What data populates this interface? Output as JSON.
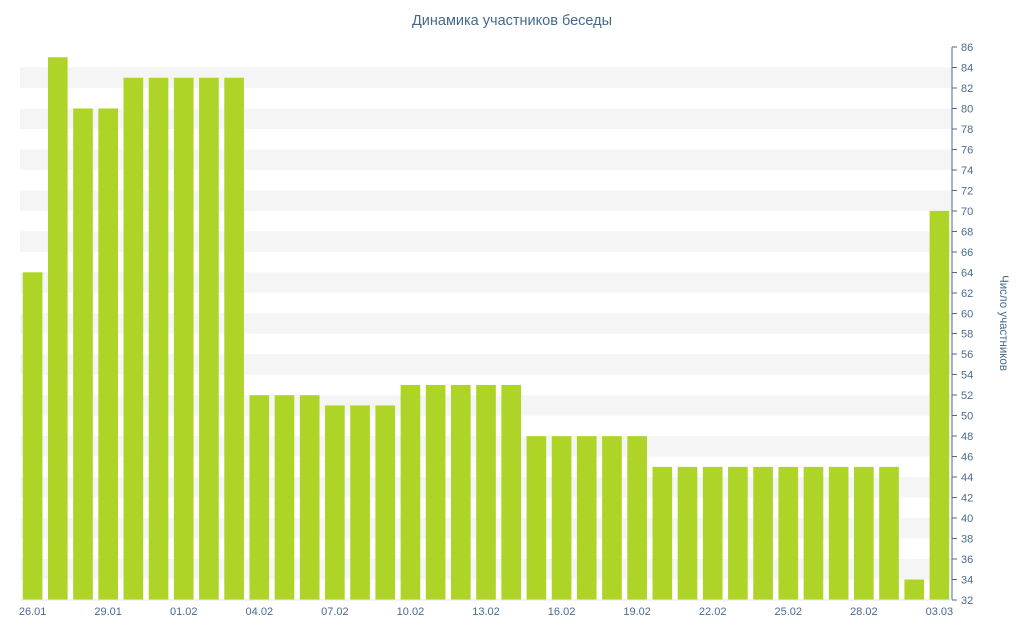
{
  "colors": {
    "bar": "#aed428",
    "text": "#4a6b8f",
    "title": "#45688e",
    "axis": "#4a6b8f",
    "stripe": "#f5f5f5",
    "baseline": "#e8e8e8",
    "background": "#ffffff"
  },
  "chart_data": {
    "type": "bar",
    "title": "Динамика участников беседы",
    "xlabel": "",
    "ylabel": "Число участников",
    "ylim": [
      32,
      86
    ],
    "y_tick_step": 2,
    "grid": "striped-bands",
    "legend": "none",
    "y_axis_side": "right",
    "categories": [
      "26.01",
      "27.01",
      "28.01",
      "29.01",
      "30.01",
      "31.01",
      "01.02",
      "02.02",
      "03.02",
      "04.02",
      "05.02",
      "06.02",
      "07.02",
      "08.02",
      "09.02",
      "10.02",
      "11.02",
      "12.02",
      "13.02",
      "14.02",
      "15.02",
      "16.02",
      "17.02",
      "18.02",
      "19.02",
      "20.02",
      "21.02",
      "22.02",
      "23.02",
      "24.02",
      "25.02",
      "26.02",
      "27.02",
      "28.02",
      "01.03",
      "02.03",
      "03.03"
    ],
    "values": [
      64,
      85,
      80,
      80,
      83,
      83,
      83,
      83,
      83,
      52,
      52,
      52,
      51,
      51,
      51,
      53,
      53,
      53,
      53,
      53,
      48,
      48,
      48,
      48,
      48,
      45,
      45,
      45,
      45,
      45,
      45,
      45,
      45,
      45,
      45,
      34,
      70
    ],
    "x_tick_labels": [
      "26.01",
      "29.01",
      "01.02",
      "04.02",
      "07.02",
      "10.02",
      "13.02",
      "16.02",
      "19.02",
      "22.02",
      "25.02",
      "28.02",
      "03.03"
    ],
    "x_tick_every": 3
  }
}
